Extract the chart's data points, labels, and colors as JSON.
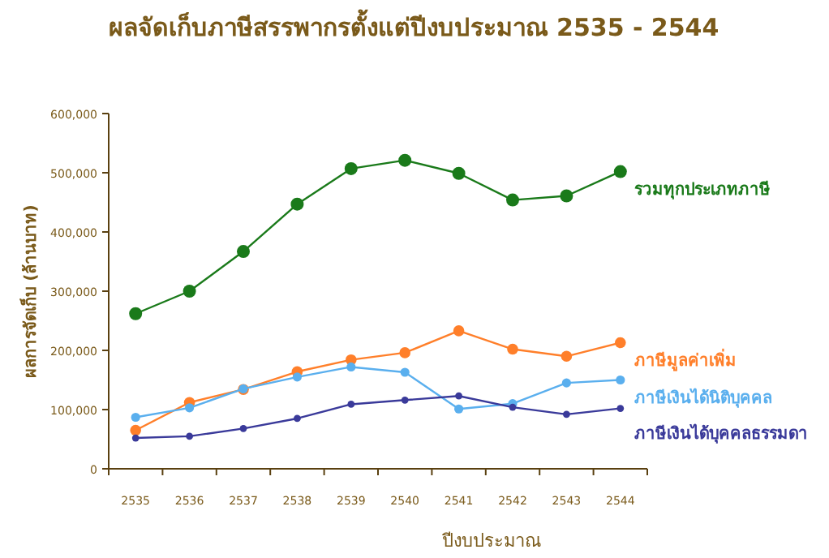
{
  "chart_data": {
    "type": "line",
    "title": "ผลจัดเก็บภาษีสรรพากรตั้งแต่ปีงบประมาณ 2535 - 2544",
    "xlabel": "ปีงบประมาณ",
    "ylabel": "ผลการจัดเก็บ (ล้านบาท)",
    "categories": [
      "2535",
      "2536",
      "2537",
      "2538",
      "2539",
      "2540",
      "2541",
      "2542",
      "2543",
      "2544"
    ],
    "ylim": [
      0,
      600000
    ],
    "yticks": [
      {
        "value": 0,
        "label": "0"
      },
      {
        "value": 100000,
        "label": "100,000"
      },
      {
        "value": 200000,
        "label": "200,000"
      },
      {
        "value": 300000,
        "label": "300,000"
      },
      {
        "value": 400000,
        "label": "400,000"
      },
      {
        "value": 500000,
        "label": "500,000"
      },
      {
        "value": 600000,
        "label": "600,000"
      }
    ],
    "grid": false,
    "marker": "circle",
    "line_style": "solid",
    "series": [
      {
        "name": "รวมทุกประเภทภาษี",
        "color": "#1a7a1a",
        "values": [
          262000,
          300000,
          367000,
          447000,
          507000,
          521000,
          499000,
          454000,
          461000,
          502000
        ]
      },
      {
        "name": "ภาษีมูลค่าเพิ่ม",
        "color": "#ff7f2a",
        "values": [
          65000,
          112000,
          134000,
          164000,
          184000,
          196000,
          233000,
          202000,
          190000,
          213000
        ]
      },
      {
        "name": "ภาษีเงินได้นิติบุคคล",
        "color": "#5aafee",
        "values": [
          87000,
          103000,
          135000,
          155000,
          172000,
          163000,
          101000,
          110000,
          145000,
          150000
        ]
      },
      {
        "name": "ภาษีเงินได้บุคคลธรรมดา",
        "color": "#3a3a9a",
        "values": [
          52000,
          55000,
          68000,
          85000,
          109000,
          116000,
          123000,
          104000,
          92000,
          102000
        ]
      }
    ]
  }
}
